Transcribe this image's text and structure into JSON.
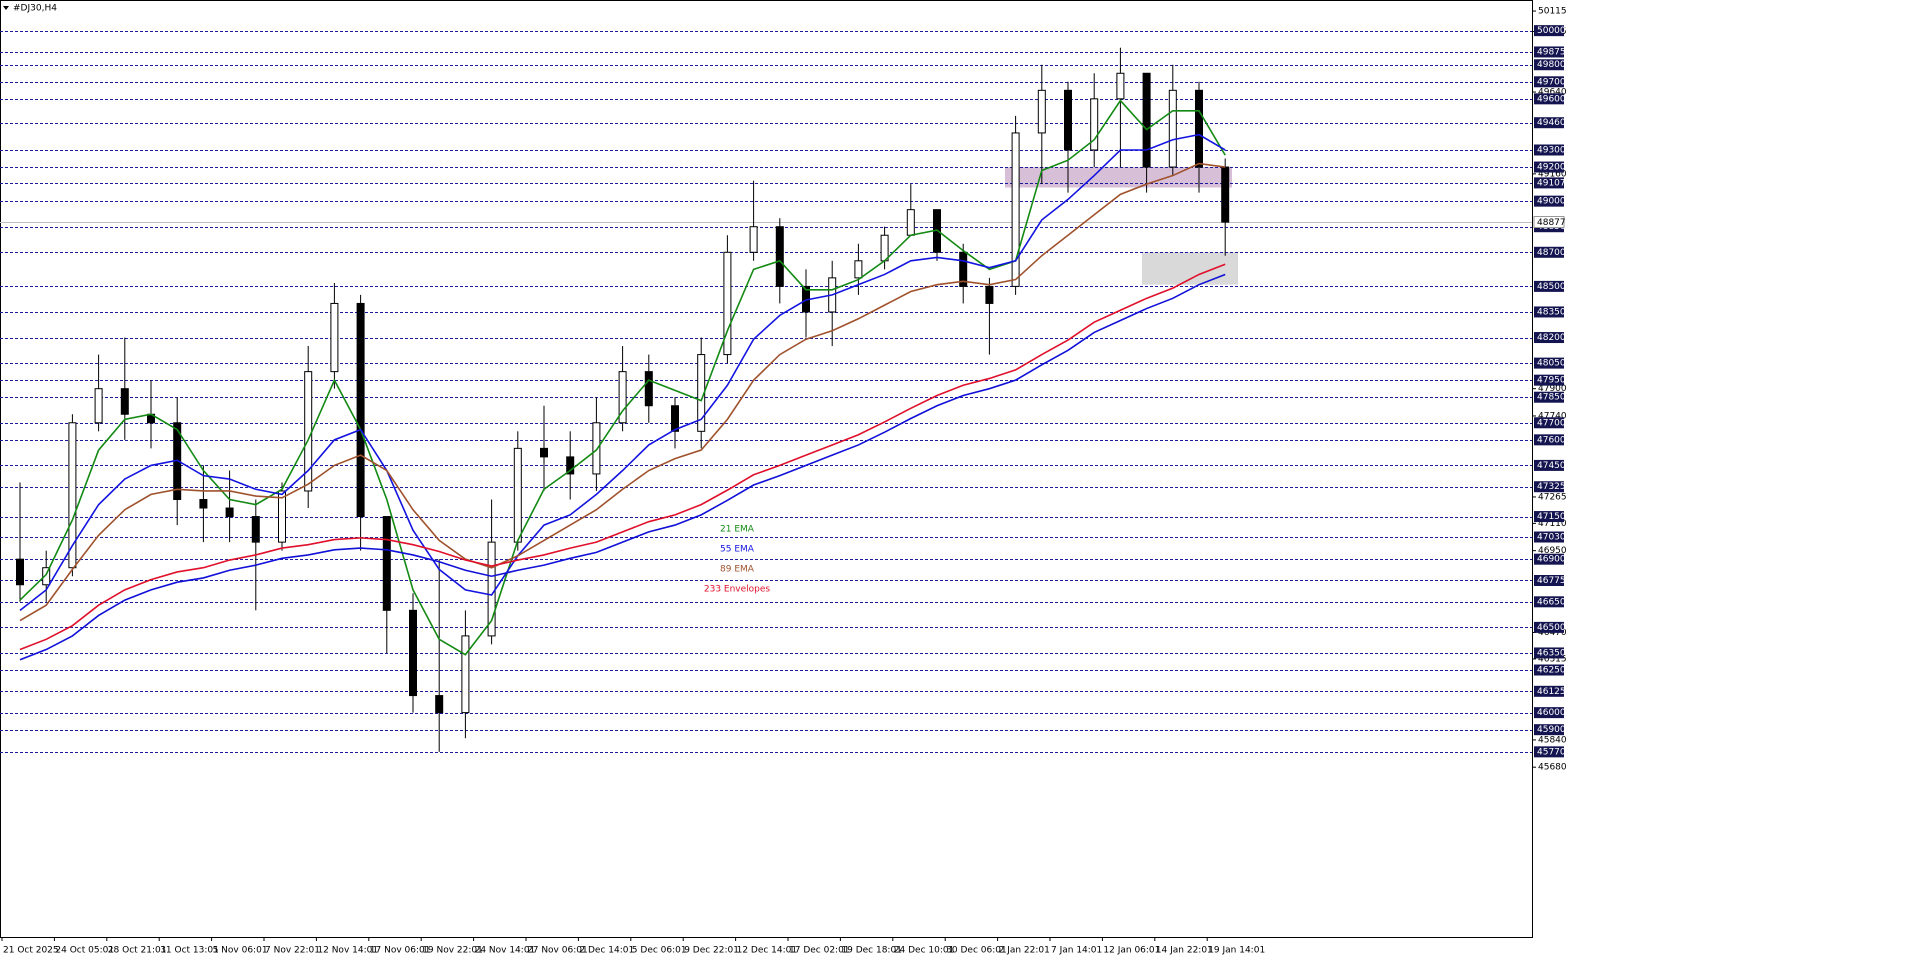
{
  "chart_data": {
    "type": "candlestick",
    "title": "#DJ30,H4",
    "categories": [
      "21 Oct 2025",
      null,
      "24 Oct 05:01",
      null,
      "28 Oct 21:01",
      null,
      "31 Oct 13:01",
      null,
      "5 Nov 06:01",
      null,
      "7 Nov 22:01",
      null,
      "12 Nov 14:01",
      null,
      "17 Nov 06:01",
      null,
      "19 Nov 22:01",
      null,
      "24 Nov 14:01",
      null,
      "27 Nov 06:01",
      null,
      "2 Dec 14:01",
      null,
      "5 Dec 06:01",
      null,
      "9 Dec 22:01",
      null,
      "12 Dec 14:01",
      null,
      "17 Dec 02:01",
      null,
      "19 Dec 18:01",
      null,
      "24 Dec 10:01",
      null,
      "30 Dec 06:01",
      null,
      "2 Jan 22:01",
      null,
      "7 Jan 14:01",
      null,
      "12 Jan 06:01",
      null,
      "14 Jan 22:01",
      null,
      "19 Jan 14:01"
    ],
    "open": [
      46900,
      46750,
      46850,
      47700,
      47900,
      47750,
      47700,
      47250,
      47200,
      47150,
      47000,
      47300,
      48000,
      48400,
      47150,
      46600,
      46100,
      46000,
      46450,
      47000,
      47550,
      47500,
      47400,
      47700,
      48000,
      47800,
      47650,
      48100,
      48700,
      48850,
      48500,
      48350,
      48550,
      48650,
      48800,
      48950,
      48700,
      48500,
      48500,
      49400,
      49650,
      49300,
      49600,
      49750,
      49200,
      49650,
      49200
    ],
    "high": [
      47350,
      46950,
      47750,
      48100,
      48200,
      47950,
      47850,
      47450,
      47420,
      47250,
      47350,
      48150,
      48520,
      48450,
      47150,
      46700,
      46900,
      46600,
      47250,
      47650,
      47800,
      47650,
      47850,
      48150,
      48100,
      47850,
      48200,
      48800,
      49120,
      48900,
      48600,
      48650,
      48750,
      48850,
      49100,
      48950,
      48750,
      48550,
      49500,
      49800,
      49700,
      49750,
      49900,
      49750,
      49800,
      49700,
      49250
    ],
    "low": [
      46650,
      46650,
      46800,
      47650,
      47600,
      47550,
      47100,
      47000,
      47000,
      46600,
      46950,
      47200,
      47900,
      46950,
      46350,
      46000,
      45770,
      45850,
      46400,
      46950,
      47300,
      47250,
      47300,
      47650,
      47700,
      47550,
      47550,
      48050,
      48650,
      48400,
      48200,
      48150,
      48450,
      48600,
      48800,
      48650,
      48400,
      48100,
      48450,
      49100,
      49050,
      49200,
      49200,
      49050,
      49150,
      49050,
      48680
    ],
    "close": [
      46750,
      46850,
      47700,
      47900,
      47750,
      47700,
      47250,
      47200,
      47150,
      47000,
      47300,
      48000,
      48400,
      47150,
      46600,
      46100,
      46000,
      46450,
      47000,
      47550,
      47500,
      47400,
      47700,
      48000,
      47800,
      47650,
      48100,
      48700,
      48850,
      48500,
      48350,
      48550,
      48650,
      48800,
      48950,
      48700,
      48500,
      48400,
      49400,
      49650,
      49300,
      49600,
      49750,
      49200,
      49650,
      49200,
      48877
    ],
    "series": [
      {
        "name": "21 EMA",
        "color": "#138a13",
        "values": [
          46660,
          46810,
          47130,
          47540,
          47720,
          47750,
          47660,
          47420,
          47250,
          47220,
          47310,
          47600,
          47950,
          47660,
          47250,
          46720,
          46430,
          46340,
          46540,
          47010,
          47310,
          47420,
          47540,
          47770,
          47950,
          47890,
          47830,
          48240,
          48600,
          48650,
          48480,
          48480,
          48540,
          48650,
          48800,
          48830,
          48710,
          48600,
          48650,
          49180,
          49240,
          49360,
          49590,
          49420,
          49530,
          49530,
          49270
        ]
      },
      {
        "name": "55 EMA",
        "color": "#1414e0",
        "values": [
          46600,
          46720,
          46980,
          47220,
          47370,
          47450,
          47480,
          47390,
          47370,
          47310,
          47280,
          47420,
          47600,
          47660,
          47420,
          47070,
          46840,
          46720,
          46690,
          46920,
          47100,
          47160,
          47280,
          47420,
          47570,
          47660,
          47720,
          47920,
          48190,
          48330,
          48420,
          48450,
          48510,
          48570,
          48650,
          48670,
          48650,
          48610,
          48650,
          48890,
          49010,
          49150,
          49300,
          49300,
          49360,
          49390,
          49300
        ]
      },
      {
        "name": "89 EMA",
        "color": "#a0522d",
        "values": [
          46540,
          46630,
          46840,
          47040,
          47190,
          47280,
          47310,
          47300,
          47300,
          47270,
          47260,
          47340,
          47450,
          47510,
          47420,
          47190,
          47010,
          46900,
          46850,
          46920,
          47010,
          47100,
          47190,
          47310,
          47420,
          47490,
          47540,
          47720,
          47950,
          48100,
          48190,
          48240,
          48310,
          48390,
          48470,
          48510,
          48530,
          48510,
          48540,
          48680,
          48800,
          48920,
          49040,
          49100,
          49150,
          49220,
          49200
        ]
      },
      {
        "name": "233 Envelopes",
        "color": "#e0102a",
        "lower_color": "#1010d8",
        "values": [
          46370,
          46430,
          46510,
          46630,
          46720,
          46780,
          46825,
          46850,
          46895,
          46925,
          46965,
          46985,
          47015,
          47025,
          47015,
          46985,
          46945,
          46895,
          46860,
          46895,
          46925,
          46965,
          47000,
          47060,
          47120,
          47160,
          47220,
          47305,
          47395,
          47450,
          47510,
          47570,
          47630,
          47705,
          47785,
          47860,
          47920,
          47960,
          48010,
          48100,
          48185,
          48290,
          48360,
          48430,
          48490,
          48570,
          48630
        ],
        "lower": [
          46310,
          46370,
          46450,
          46570,
          46660,
          46720,
          46765,
          46790,
          46835,
          46865,
          46905,
          46925,
          46955,
          46965,
          46955,
          46925,
          46885,
          46835,
          46800,
          46835,
          46865,
          46905,
          46940,
          47000,
          47060,
          47100,
          47160,
          47245,
          47335,
          47390,
          47450,
          47510,
          47570,
          47645,
          47725,
          47800,
          47860,
          47900,
          47950,
          48040,
          48125,
          48230,
          48300,
          48370,
          48430,
          48510,
          48570
        ]
      }
    ],
    "levels": [
      50000,
      49875,
      49800,
      49700,
      49600,
      49460,
      49300,
      49200,
      49107,
      49000,
      48850,
      48700,
      48500,
      48350,
      48200,
      48050,
      47950,
      47850,
      47700,
      47600,
      47450,
      47325,
      47150,
      47030,
      46900,
      46775,
      46650,
      46500,
      46350,
      46250,
      46125,
      46000,
      45900,
      45770
    ],
    "last_price": 48877,
    "zones": [
      {
        "low": 49080,
        "high": 49200,
        "color": "#d8bfd8"
      },
      {
        "low": 48510,
        "high": 48700,
        "color": "#d9d9d9"
      }
    ],
    "ylim": [
      44684,
      50168
    ],
    "yticks": [
      50115,
      49995,
      49640,
      49160,
      47900,
      47740,
      47265,
      47110,
      46950,
      46470,
      46315,
      45840,
      45680
    ]
  }
}
